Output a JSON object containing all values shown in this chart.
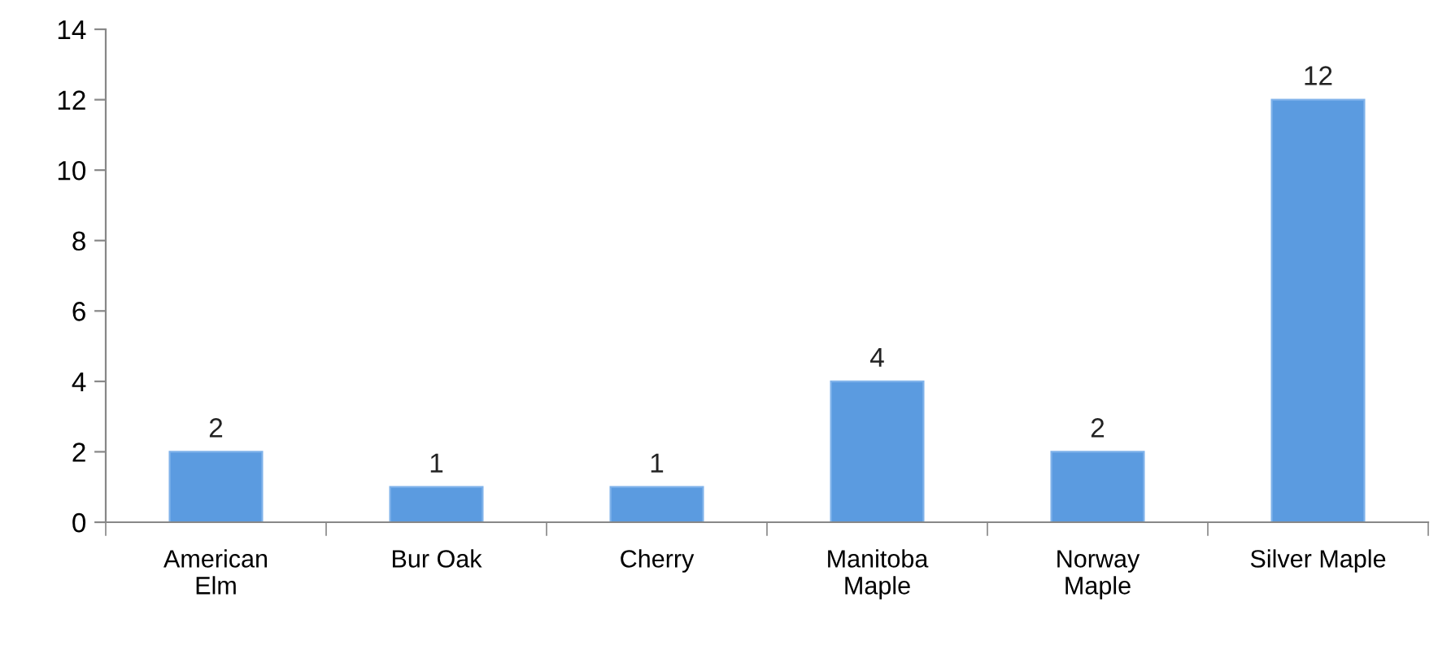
{
  "chart_data": {
    "type": "bar",
    "categories": [
      "American\nElm",
      "Bur Oak",
      "Cherry",
      "Manitoba\nMaple",
      "Norway\nMaple",
      "Silver Maple"
    ],
    "values": [
      2,
      1,
      1,
      4,
      2,
      12
    ],
    "color": "#5b9be0",
    "ylim": [
      0,
      14
    ],
    "yticks": [
      0,
      2,
      4,
      6,
      8,
      10,
      12,
      14
    ],
    "data_labels": true,
    "grid": false,
    "legend": false
  }
}
